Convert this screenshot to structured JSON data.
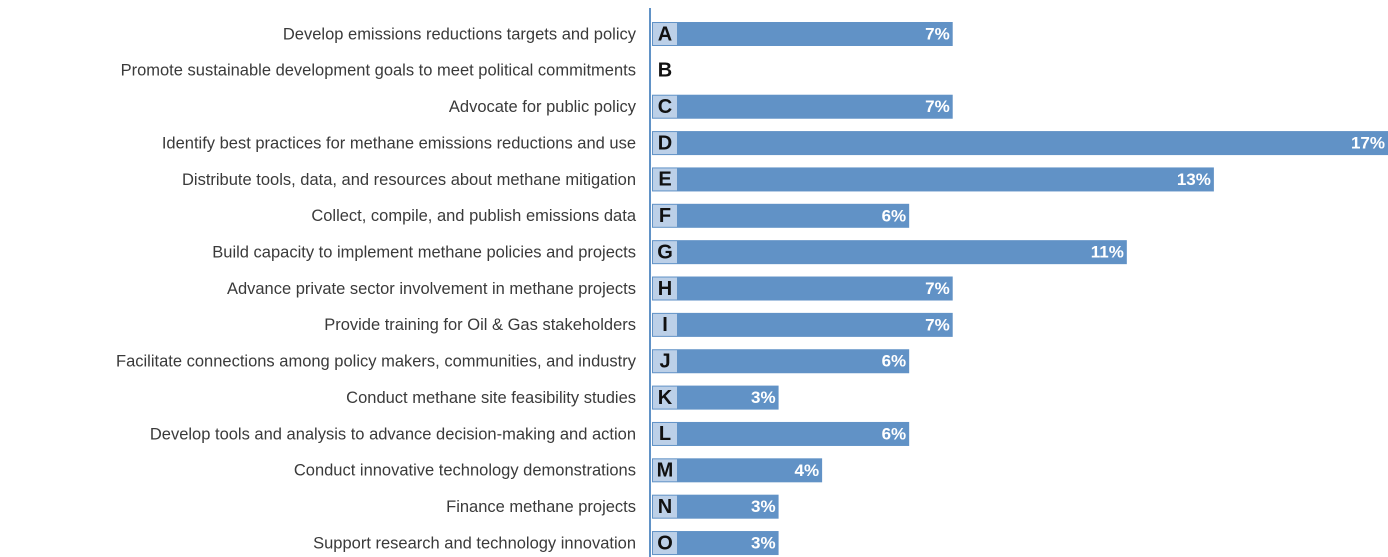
{
  "chart_data": {
    "type": "barh",
    "categories": [
      "Develop emissions reductions targets and policy",
      "Promote sustainable development goals to meet political commitments",
      "Advocate for public policy",
      "Identify best practices for methane emissions reductions and use",
      "Distribute tools, data, and resources about methane mitigation",
      "Collect, compile, and publish emissions data",
      "Build capacity to implement methane policies and projects",
      "Advance private sector involvement in methane projects",
      "Provide training for Oil & Gas stakeholders",
      "Facilitate connections among policy makers, communities, and industry",
      "Conduct methane site feasibility studies",
      "Develop tools and analysis to advance decision-making and action",
      "Conduct innovative technology demonstrations",
      "Finance methane projects",
      "Support research and technology innovation"
    ],
    "letters": [
      "A",
      "B",
      "C",
      "D",
      "E",
      "F",
      "G",
      "H",
      "I",
      "J",
      "K",
      "L",
      "M",
      "N",
      "O"
    ],
    "values": [
      7,
      null,
      7,
      17,
      13,
      6,
      11,
      7,
      7,
      6,
      3,
      6,
      4,
      3,
      3
    ],
    "value_labels": [
      "7%",
      null,
      "7%",
      "17%",
      "13%",
      "6%",
      "11%",
      "7%",
      "7%",
      "6%",
      "3%",
      "6%",
      "4%",
      "3%",
      "3%"
    ],
    "color": "#6192c6",
    "xlim": [
      0,
      17
    ]
  }
}
